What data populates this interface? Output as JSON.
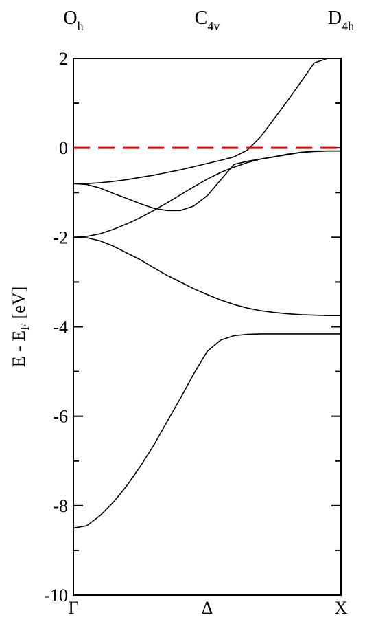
{
  "chart_data": {
    "type": "line",
    "title": "",
    "ylabel": "E - E",
    "ylabel_sub": "F",
    "ylabel_suffix": " [eV]",
    "ylim": [
      -10,
      2
    ],
    "xlim": [
      0,
      1
    ],
    "y_major_ticks": [
      -10,
      -8,
      -6,
      -4,
      -2,
      0,
      2
    ],
    "y_tick_labels": [
      "-10",
      "-8",
      "-6",
      "-4",
      "-2",
      "0",
      "2"
    ],
    "y_minor_ticks": [
      -9,
      -7,
      -5,
      -3,
      -1,
      1
    ],
    "x_ticks": [
      {
        "x": 0,
        "label": "Γ"
      },
      {
        "x": 0.5,
        "label": "Δ"
      },
      {
        "x": 1,
        "label": "X"
      }
    ],
    "point_groups": [
      {
        "x": 0,
        "base": "O",
        "sub": "h"
      },
      {
        "x": 0.5,
        "base": "C",
        "sub": "4v"
      },
      {
        "x": 1,
        "base": "D",
        "sub": "4h"
      }
    ],
    "fermi_level": {
      "y": 0,
      "color": "#dd0000"
    },
    "band_color": "#000000",
    "grid": false,
    "series": [
      {
        "x": [
          0,
          0.05,
          0.1,
          0.15,
          0.2,
          0.25,
          0.3,
          0.35,
          0.4,
          0.45,
          0.5,
          0.55,
          0.6,
          0.65,
          0.7,
          0.75,
          0.8,
          0.85,
          0.9,
          0.95,
          1.0
        ],
        "values": [
          -8.5,
          -8.45,
          -8.22,
          -7.92,
          -7.55,
          -7.12,
          -6.65,
          -6.12,
          -5.6,
          -5.05,
          -4.55,
          -4.3,
          -4.2,
          -4.17,
          -4.16,
          -4.16,
          -4.16,
          -4.16,
          -4.16,
          -4.16,
          -4.16
        ]
      },
      {
        "x": [
          0,
          0.05,
          0.1,
          0.15,
          0.2,
          0.25,
          0.3,
          0.35,
          0.4,
          0.45,
          0.5,
          0.55,
          0.6,
          0.65,
          0.7,
          0.75,
          0.8,
          0.85,
          0.9,
          0.95,
          1.0
        ],
        "values": [
          -2.0,
          -2.01,
          -2.08,
          -2.2,
          -2.35,
          -2.5,
          -2.68,
          -2.85,
          -3.0,
          -3.15,
          -3.28,
          -3.4,
          -3.5,
          -3.58,
          -3.64,
          -3.68,
          -3.71,
          -3.73,
          -3.74,
          -3.75,
          -3.75
        ]
      },
      {
        "x": [
          0,
          0.05,
          0.1,
          0.15,
          0.2,
          0.25,
          0.3,
          0.35,
          0.4,
          0.45,
          0.5,
          0.55,
          0.6,
          0.65,
          0.7,
          0.75,
          0.8,
          0.85,
          0.9,
          0.95,
          1.0
        ],
        "values": [
          -2.0,
          -1.98,
          -1.92,
          -1.82,
          -1.7,
          -1.56,
          -1.4,
          -1.23,
          -1.05,
          -0.87,
          -0.7,
          -0.55,
          -0.43,
          -0.33,
          -0.25,
          -0.2,
          -0.14,
          -0.1,
          -0.08,
          -0.07,
          -0.07
        ]
      },
      {
        "x": [
          0,
          0.05,
          0.1,
          0.15,
          0.2,
          0.25,
          0.3,
          0.35,
          0.4,
          0.45,
          0.5,
          0.55,
          0.6,
          0.65,
          0.7,
          0.75,
          0.8,
          0.85,
          0.9,
          0.95,
          1.0
        ],
        "values": [
          -0.8,
          -0.82,
          -0.9,
          -1.02,
          -1.13,
          -1.25,
          -1.35,
          -1.4,
          -1.4,
          -1.3,
          -1.07,
          -0.72,
          -0.37,
          -0.3,
          -0.25,
          -0.2,
          -0.15,
          -0.1,
          -0.07,
          -0.07,
          -0.07
        ]
      },
      {
        "x": [
          0,
          0.05,
          0.1,
          0.15,
          0.2,
          0.25,
          0.3,
          0.35,
          0.4,
          0.45,
          0.5,
          0.55,
          0.6,
          0.65,
          0.7,
          0.75,
          0.8,
          0.85,
          0.9,
          0.95,
          1.0
        ],
        "values": [
          -0.8,
          -0.8,
          -0.78,
          -0.75,
          -0.71,
          -0.66,
          -0.61,
          -0.55,
          -0.49,
          -0.42,
          -0.35,
          -0.28,
          -0.2,
          -0.05,
          0.25,
          0.65,
          1.05,
          1.47,
          1.9,
          2.0,
          2.0
        ]
      }
    ]
  }
}
